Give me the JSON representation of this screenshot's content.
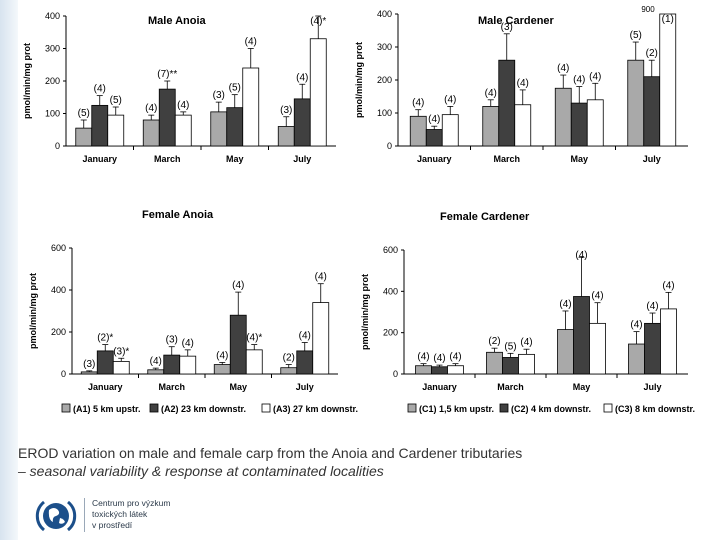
{
  "caption": {
    "line1": "EROD variation on male and female carp from the Anoia and Cardener tributaries",
    "line2": "– seasonal variability & response at contaminated localities"
  },
  "logo": {
    "line1": "Centrum pro výzkum",
    "line2": "toxických látek",
    "line3": "v prostředí"
  },
  "colors": {
    "s1": "#a9a9a9",
    "s2": "#404040",
    "s3": "#ffffff"
  },
  "chart_data": [
    {
      "type": "bar",
      "title": "Male Anoia",
      "ylabel": "pmol/min/mg prot",
      "ylim": [
        0,
        400
      ],
      "yticks": [
        0,
        100,
        200,
        300,
        400
      ],
      "categories": [
        "January",
        "March",
        "May",
        "July"
      ],
      "series": [
        {
          "values": [
            55,
            80,
            105,
            60
          ],
          "errors": [
            25,
            15,
            30,
            30
          ],
          "n_labels": [
            "(5)",
            "(4)",
            "(3)",
            "(3)"
          ]
        },
        {
          "values": [
            125,
            175,
            118,
            145
          ],
          "errors": [
            30,
            25,
            40,
            45
          ],
          "n_labels": [
            "(4)",
            "(7)**",
            "(5)",
            "(4)"
          ]
        },
        {
          "values": [
            95,
            95,
            240,
            330
          ],
          "errors": [
            25,
            10,
            60,
            70
          ],
          "n_labels": [
            "(5)",
            "(4)",
            "(4)",
            "(4)*"
          ]
        }
      ]
    },
    {
      "type": "bar",
      "title": "Male Cardener",
      "ylabel": "pmol/min/mg prot",
      "ylim": [
        0,
        400
      ],
      "yticks": [
        0,
        100,
        200,
        300,
        400
      ],
      "annotations": [
        "900"
      ],
      "categories": [
        "January",
        "March",
        "May",
        "July"
      ],
      "series": [
        {
          "values": [
            90,
            120,
            175,
            260
          ],
          "errors": [
            20,
            20,
            40,
            55
          ],
          "n_labels": [
            "(4)",
            "(4)",
            "(4)",
            "(5)"
          ]
        },
        {
          "values": [
            50,
            260,
            130,
            210
          ],
          "errors": [
            10,
            80,
            50,
            50
          ],
          "n_labels": [
            "(4)",
            "(3)",
            "(4)",
            "(2)"
          ]
        },
        {
          "values": [
            95,
            125,
            140,
            400
          ],
          "errors": [
            25,
            45,
            50,
            0
          ],
          "n_labels": [
            "(4)",
            "(4)",
            "(4)",
            "(1)"
          ]
        }
      ]
    },
    {
      "type": "bar",
      "title": "Female Anoia",
      "ylabel": "pmol/min/mg prot",
      "ylim": [
        0,
        600
      ],
      "yticks": [
        0,
        200,
        400,
        600
      ],
      "categories": [
        "January",
        "March",
        "May",
        "July"
      ],
      "series": [
        {
          "values": [
            10,
            20,
            45,
            30
          ],
          "errors": [
            5,
            8,
            10,
            15
          ],
          "n_labels": [
            "(3)",
            "(4)",
            "(4)",
            "(2)"
          ]
        },
        {
          "values": [
            110,
            90,
            280,
            110
          ],
          "errors": [
            30,
            40,
            110,
            40
          ],
          "n_labels": [
            "(2)*",
            "(3)",
            "(4)",
            "(4)"
          ]
        },
        {
          "values": [
            60,
            85,
            115,
            340
          ],
          "errors": [
            15,
            30,
            25,
            90
          ],
          "n_labels": [
            "(3)*",
            "(4)",
            "(4)*",
            "(4)"
          ]
        }
      ]
    },
    {
      "type": "bar",
      "title": "Female Cardener",
      "ylabel": "pmol/min/mg prot",
      "ylim": [
        0,
        600
      ],
      "yticks": [
        0,
        200,
        400,
        600
      ],
      "categories": [
        "January",
        "March",
        "May",
        "July"
      ],
      "series": [
        {
          "values": [
            40,
            105,
            215,
            145
          ],
          "errors": [
            10,
            20,
            90,
            60
          ],
          "n_labels": [
            "(4)",
            "(2)",
            "(4)",
            "(4)"
          ]
        },
        {
          "values": [
            35,
            80,
            375,
            245
          ],
          "errors": [
            8,
            20,
            190,
            50
          ],
          "n_labels": [
            "(4)",
            "(5)",
            "(4)",
            "(4)"
          ]
        },
        {
          "values": [
            40,
            95,
            245,
            315
          ],
          "errors": [
            10,
            25,
            100,
            80
          ],
          "n_labels": [
            "(4)",
            "(4)",
            "(4)",
            "(4)"
          ]
        }
      ]
    }
  ],
  "legends": [
    {
      "items": [
        "(A1) 5 km upstr.",
        "(A2) 23 km downstr.",
        "(A3) 27 km downstr."
      ]
    },
    {
      "items": [
        "(C1) 1,5 km upstr.",
        "(C2) 4 km downstr.",
        "(C3) 8 km downstr."
      ]
    }
  ]
}
